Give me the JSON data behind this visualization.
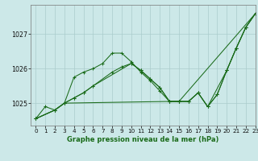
{
  "title": "Graphe pression niveau de la mer (hPa)",
  "bg_color": "#cce8e8",
  "grid_color": "#aacccc",
  "line_color": "#1a6b1a",
  "xlim": [
    -0.5,
    23
  ],
  "ylim": [
    1024.35,
    1027.85
  ],
  "yticks": [
    1025,
    1026,
    1027
  ],
  "xticks": [
    0,
    1,
    2,
    3,
    4,
    5,
    6,
    7,
    8,
    9,
    10,
    11,
    12,
    13,
    14,
    15,
    16,
    17,
    18,
    19,
    20,
    21,
    22,
    23
  ],
  "tick_fontsize": 5.2,
  "xlabel_fontsize": 6.0,
  "series": [
    {
      "x": [
        0,
        1,
        2,
        3,
        4,
        5,
        6,
        7,
        8,
        9,
        10,
        11,
        12,
        13,
        14,
        15,
        23
      ],
      "y": [
        1024.55,
        1024.9,
        1024.8,
        1025.0,
        1025.75,
        1025.9,
        1026.0,
        1026.15,
        1026.45,
        1026.45,
        1026.2,
        1025.9,
        1025.65,
        1025.35,
        1025.05,
        1025.05,
        1027.6
      ]
    },
    {
      "x": [
        0,
        2,
        3,
        14,
        15,
        16,
        17,
        18,
        19,
        20,
        21,
        22,
        23
      ],
      "y": [
        1024.55,
        1024.8,
        1025.0,
        1025.05,
        1025.05,
        1025.05,
        1025.3,
        1024.9,
        1025.25,
        1025.95,
        1026.6,
        1027.2,
        1027.6
      ]
    },
    {
      "x": [
        0,
        2,
        3,
        4,
        5,
        6,
        10,
        11,
        12,
        13,
        14,
        15,
        16,
        17,
        18,
        20,
        21,
        22,
        23
      ],
      "y": [
        1024.55,
        1024.8,
        1025.0,
        1025.15,
        1025.3,
        1025.5,
        1026.15,
        1025.95,
        1025.7,
        1025.45,
        1025.05,
        1025.05,
        1025.05,
        1025.3,
        1024.9,
        1025.95,
        1026.6,
        1027.2,
        1027.6
      ]
    },
    {
      "x": [
        0,
        2,
        3,
        4,
        5,
        6,
        8,
        9,
        10,
        11,
        12,
        13,
        14,
        15,
        16,
        17,
        18,
        19,
        20,
        21,
        22,
        23
      ],
      "y": [
        1024.55,
        1024.8,
        1025.0,
        1025.15,
        1025.3,
        1025.5,
        1025.9,
        1026.05,
        1026.15,
        1025.95,
        1025.7,
        1025.45,
        1025.05,
        1025.05,
        1025.05,
        1025.3,
        1024.9,
        1025.25,
        1025.95,
        1026.6,
        1027.2,
        1027.6
      ]
    }
  ]
}
